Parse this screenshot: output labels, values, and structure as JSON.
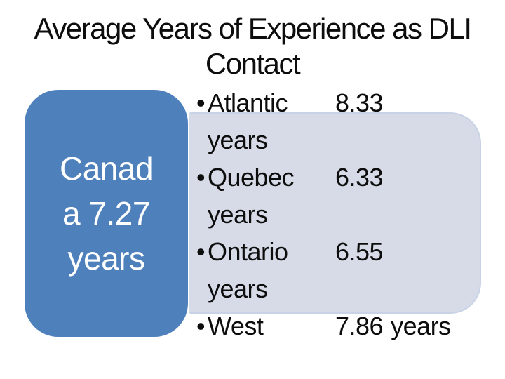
{
  "slide": {
    "title": {
      "line1": "Average Years of Experience as DLI",
      "line2": "Contact"
    },
    "canada": {
      "line1": "Canad",
      "line2": "a 7.27",
      "line3": "years"
    },
    "regions": {
      "bullet": "•",
      "items": [
        {
          "name": "Atlantic",
          "value": "8.33",
          "unit": "years"
        },
        {
          "name": "Quebec",
          "value": "6.33",
          "unit": "years"
        },
        {
          "name": "Ontario",
          "value": "6.55",
          "unit": "years"
        },
        {
          "name": "West",
          "value": "7.86",
          "unit": "years"
        }
      ]
    },
    "colors": {
      "canada_fill": "#4e81bc",
      "canada_text": "#ffffff",
      "panel_fill": "#d6dbe7",
      "panel_border": "#c9d3e6",
      "text": "#0d0d0d",
      "background": "#ffffff"
    }
  }
}
